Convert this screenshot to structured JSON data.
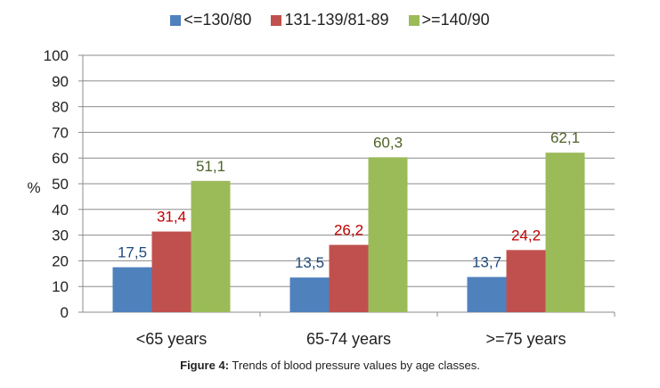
{
  "chart_data": {
    "type": "bar",
    "categories": [
      "<65 years",
      "65-74 years",
      ">=75 years"
    ],
    "series": [
      {
        "name": "<=130/80",
        "values": [
          17.5,
          13.5,
          13.7
        ],
        "labels": [
          "17,5",
          "13,5",
          "13,7"
        ],
        "color": "#4f81bd",
        "label_color": "#1f497d"
      },
      {
        "name": "131-139/81-89",
        "values": [
          31.4,
          26.2,
          24.2
        ],
        "labels": [
          "31,4",
          "26,2",
          "24,2"
        ],
        "color": "#c0504d",
        "label_color": "#c00000"
      },
      {
        "name": ">=140/90",
        "values": [
          51.1,
          60.3,
          62.1
        ],
        "labels": [
          "51,1",
          "60,3",
          "62,1"
        ],
        "color": "#9bbb59",
        "label_color": "#4f6228"
      }
    ],
    "ylabel": "%",
    "ylim": [
      0,
      100
    ],
    "yticks": [
      "0",
      "10",
      "20",
      "30",
      "40",
      "50",
      "60",
      "70",
      "80",
      "90",
      "100"
    ],
    "grid": true,
    "legend_position": "top"
  },
  "caption": {
    "label": "Figure 4:",
    "text": " Trends of blood pressure values by age classes."
  }
}
